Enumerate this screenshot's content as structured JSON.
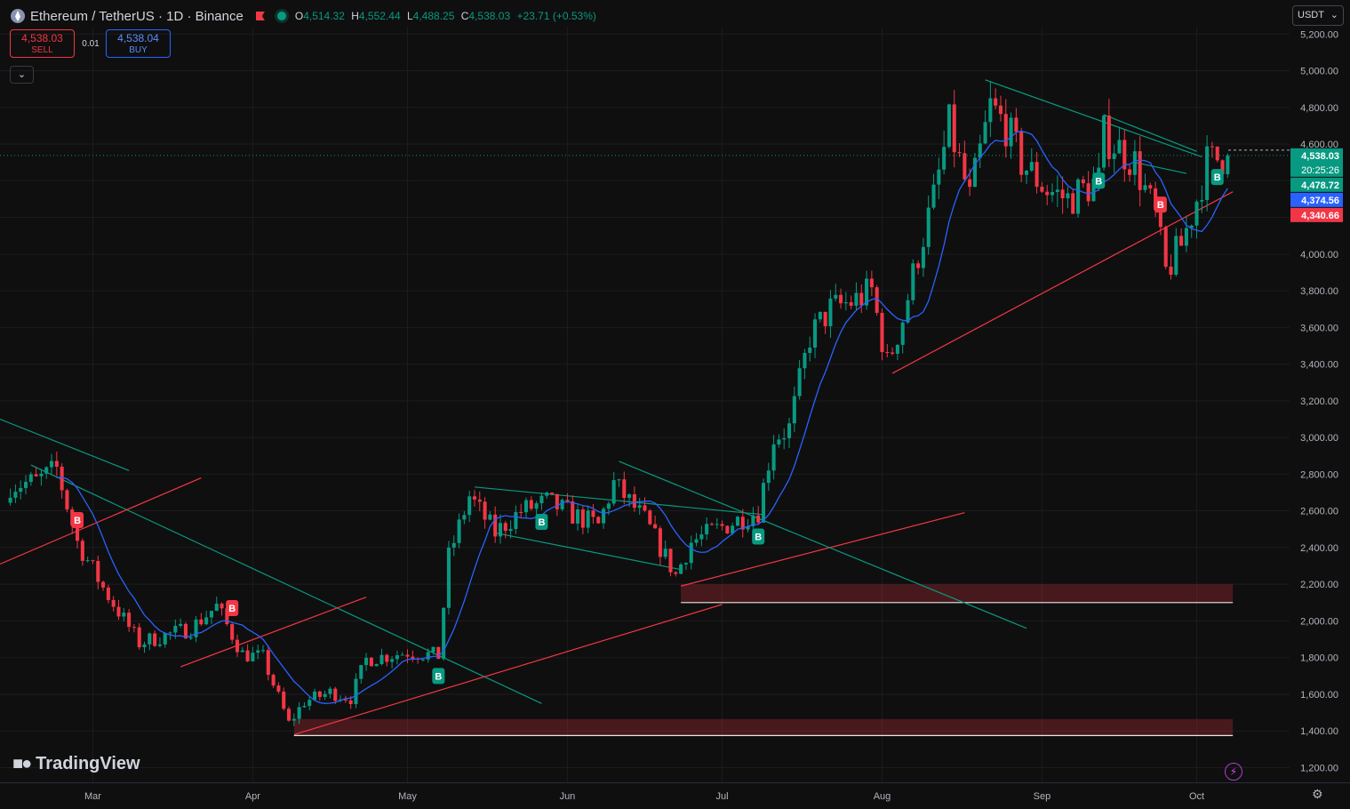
{
  "header": {
    "title": "Ethereum / TetherUS · 1D · Binance",
    "ohlc": [
      {
        "k": "O",
        "v": "4,514.32"
      },
      {
        "k": "H",
        "v": "4,552.44"
      },
      {
        "k": "L",
        "v": "4,488.25"
      },
      {
        "k": "C",
        "v": "4,538.03"
      }
    ],
    "change": "+23.71 (+0.53%)"
  },
  "trade": {
    "sell_price": "4,538.03",
    "sell_label": "SELL",
    "buy_price": "4,538.04",
    "buy_label": "BUY",
    "spread": "0.01"
  },
  "currency": "USDT",
  "brand": "TradingView",
  "colors": {
    "up": "#089981",
    "down": "#f23645",
    "ma": "#2962ff",
    "bg": "#0f0f0f",
    "grid": "#1e1e1e"
  },
  "chart_data": {
    "type": "candlestick",
    "y_ticks": [
      1200,
      1400,
      1600,
      1800,
      2000,
      2200,
      2400,
      2600,
      2800,
      3000,
      3200,
      3400,
      3600,
      3800,
      4000,
      4200,
      4400,
      4600,
      4800,
      5000,
      5200
    ],
    "y_tick_labels": [
      "1,200.00",
      "1,400.00",
      "1,600.00",
      "1,800.00",
      "2,000.00",
      "2,200.00",
      "2,400.00",
      "2,600.00",
      "2,800.00",
      "3,000.00",
      "3,200.00",
      "3,400.00",
      "3,600.00",
      "3,800.00",
      "4,000.00",
      "4,200.00",
      "4,400.00",
      "4,600.00",
      "4,800.00",
      "5,000.00",
      "5,200.00"
    ],
    "ylim": [
      1120,
      5240
    ],
    "x_labels": [
      {
        "label": "Mar",
        "date": "2025-03-01"
      },
      {
        "label": "Apr",
        "date": "2025-04-01"
      },
      {
        "label": "May",
        "date": "2025-05-01"
      },
      {
        "label": "Jun",
        "date": "2025-06-01"
      },
      {
        "label": "Jul",
        "date": "2025-07-01"
      },
      {
        "label": "Aug",
        "date": "2025-08-01"
      },
      {
        "label": "Sep",
        "date": "2025-09-01"
      },
      {
        "label": "Oct",
        "date": "2025-10-01"
      }
    ],
    "xlim": [
      "2025-02-11",
      "2025-10-19"
    ],
    "anchors": [
      [
        "2025-02-13",
        2740
      ],
      [
        "2025-02-18",
        2760
      ],
      [
        "2025-02-22",
        2830
      ],
      [
        "2025-02-26",
        2430
      ],
      [
        "2025-03-03",
        2180
      ],
      [
        "2025-03-10",
        1880
      ],
      [
        "2025-03-15",
        1920
      ],
      [
        "2025-03-20",
        1960
      ],
      [
        "2025-03-25",
        2080
      ],
      [
        "2025-03-30",
        1820
      ],
      [
        "2025-04-03",
        1800
      ],
      [
        "2025-04-08",
        1440
      ],
      [
        "2025-04-11",
        1560
      ],
      [
        "2025-04-16",
        1610
      ],
      [
        "2025-04-20",
        1580
      ],
      [
        "2025-04-23",
        1790
      ],
      [
        "2025-05-01",
        1830
      ],
      [
        "2025-05-07",
        1810
      ],
      [
        "2025-05-09",
        2350
      ],
      [
        "2025-05-13",
        2680
      ],
      [
        "2025-05-18",
        2480
      ],
      [
        "2025-05-23",
        2600
      ],
      [
        "2025-05-28",
        2650
      ],
      [
        "2025-06-02",
        2580
      ],
      [
        "2025-06-07",
        2520
      ],
      [
        "2025-06-10",
        2750
      ],
      [
        "2025-06-16",
        2550
      ],
      [
        "2025-06-22",
        2250
      ],
      [
        "2025-06-25",
        2430
      ],
      [
        "2025-06-30",
        2500
      ],
      [
        "2025-07-08",
        2600
      ],
      [
        "2025-07-11",
        3000
      ],
      [
        "2025-07-14",
        3050
      ],
      [
        "2025-07-18",
        3550
      ],
      [
        "2025-07-22",
        3700
      ],
      [
        "2025-07-27",
        3750
      ],
      [
        "2025-07-30",
        3800
      ],
      [
        "2025-08-02",
        3400
      ],
      [
        "2025-08-05",
        3650
      ],
      [
        "2025-08-08",
        4000
      ],
      [
        "2025-08-11",
        4300
      ],
      [
        "2025-08-14",
        4700
      ],
      [
        "2025-08-18",
        4300
      ],
      [
        "2025-08-22",
        4800
      ],
      [
        "2025-08-25",
        4700
      ],
      [
        "2025-08-28",
        4500
      ],
      [
        "2025-09-02",
        4350
      ],
      [
        "2025-09-06",
        4300
      ],
      [
        "2025-09-12",
        4400
      ],
      [
        "2025-09-13",
        4650
      ],
      [
        "2025-09-19",
        4500
      ],
      [
        "2025-09-23",
        4200
      ],
      [
        "2025-09-25",
        3900
      ],
      [
        "2025-09-28",
        4050
      ],
      [
        "2025-10-01",
        4300
      ],
      [
        "2025-10-03",
        4500
      ],
      [
        "2025-10-07",
        4538.03
      ]
    ],
    "moving_average": {
      "period": 10,
      "color": "#2962ff"
    },
    "price_labels": [
      {
        "value": 4538.03,
        "text": "4,538.03",
        "bg": "#089981"
      },
      {
        "value": 4478.72,
        "text": "4,478.72",
        "bg": "#089981"
      },
      {
        "value": 4374.56,
        "text": "4,374.56",
        "bg": "#2962ff"
      },
      {
        "value": 4340.66,
        "text": "4,340.66",
        "bg": "#f23645"
      }
    ],
    "countdown": "20:25:26",
    "trendlines": [
      {
        "color": "#089981",
        "from": [
          "2025-02-11",
          3100
        ],
        "to": [
          "2025-03-08",
          2820
        ]
      },
      {
        "color": "#089981",
        "from": [
          "2025-02-17",
          2850
        ],
        "to": [
          "2025-05-27",
          1550
        ]
      },
      {
        "color": "#f23645",
        "from": [
          "2025-02-11",
          2310
        ],
        "to": [
          "2025-03-22",
          2780
        ]
      },
      {
        "color": "#f23645",
        "from": [
          "2025-03-18",
          1750
        ],
        "to": [
          "2025-04-23",
          2130
        ]
      },
      {
        "color": "#f23645",
        "from": [
          "2025-04-09",
          1380
        ],
        "to": [
          "2025-07-01",
          2090
        ]
      },
      {
        "color": "#089981",
        "from": [
          "2025-05-14",
          2730
        ],
        "to": [
          "2025-07-09",
          2580
        ]
      },
      {
        "color": "#089981",
        "from": [
          "2025-05-18",
          2480
        ],
        "to": [
          "2025-06-23",
          2280
        ]
      },
      {
        "color": "#f23645",
        "from": [
          "2025-06-23",
          2190
        ],
        "to": [
          "2025-08-17",
          2590
        ]
      },
      {
        "color": "#089981",
        "from": [
          "2025-06-11",
          2870
        ],
        "to": [
          "2025-08-29",
          1960
        ]
      },
      {
        "color": "#f23645",
        "from": [
          "2025-08-03",
          3350
        ],
        "to": [
          "2025-10-08",
          4340
        ]
      },
      {
        "color": "#089981",
        "from": [
          "2025-08-21",
          4950
        ],
        "to": [
          "2025-10-02",
          4530
        ]
      },
      {
        "color": "#089981",
        "from": [
          "2025-09-13",
          4760
        ],
        "to": [
          "2025-10-01",
          4560
        ]
      },
      {
        "color": "#089981",
        "from": [
          "2025-09-19",
          4500
        ],
        "to": [
          "2025-09-29",
          4440
        ]
      }
    ],
    "zones": [
      {
        "from": "2025-04-09",
        "to": "2025-10-08",
        "low": 1375,
        "high": 1465
      },
      {
        "from": "2025-06-23",
        "to": "2025-10-08",
        "low": 2100,
        "high": 2200
      }
    ],
    "signals": [
      {
        "date": "2025-02-26",
        "value": 2550,
        "text": "B",
        "color": "#f23645"
      },
      {
        "date": "2025-03-28",
        "value": 2070,
        "text": "B",
        "color": "#f23645"
      },
      {
        "date": "2025-05-07",
        "value": 1700,
        "text": "B",
        "color": "#089981"
      },
      {
        "date": "2025-05-27",
        "value": 2540,
        "text": "B",
        "color": "#089981"
      },
      {
        "date": "2025-07-08",
        "value": 2460,
        "text": "B",
        "color": "#089981"
      },
      {
        "date": "2025-09-12",
        "value": 4400,
        "text": "B",
        "color": "#089981"
      },
      {
        "date": "2025-09-24",
        "value": 4270,
        "text": "B",
        "color": "#f23645"
      },
      {
        "date": "2025-10-05",
        "value": 4420,
        "text": "B",
        "color": "#089981"
      }
    ]
  }
}
